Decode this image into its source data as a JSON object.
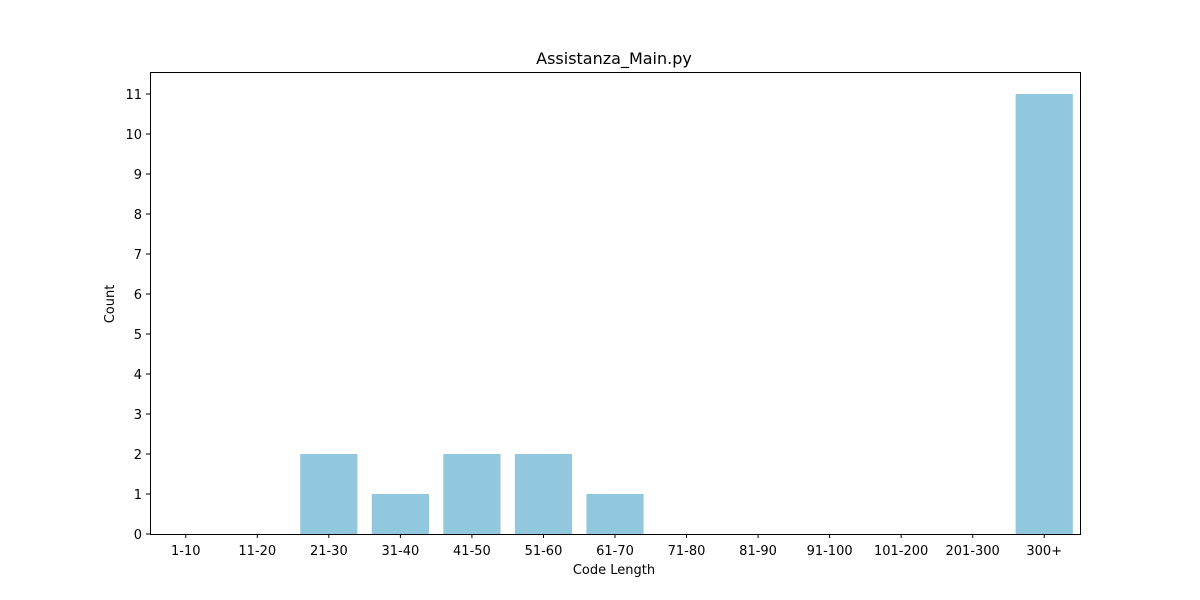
{
  "chart_data": {
    "type": "bar",
    "title": "Assistanza_Main.py",
    "xlabel": "Code Length",
    "ylabel": "Count",
    "categories": [
      "1-10",
      "11-20",
      "21-30",
      "31-40",
      "41-50",
      "51-60",
      "61-70",
      "71-80",
      "81-90",
      "91-100",
      "101-200",
      "201-300",
      "300+"
    ],
    "values": [
      0,
      0,
      2,
      1,
      2,
      2,
      1,
      0,
      0,
      0,
      0,
      0,
      11
    ],
    "ylim": [
      0,
      11.55
    ],
    "yticks": [
      0,
      1,
      2,
      3,
      4,
      5,
      6,
      7,
      8,
      9,
      10,
      11
    ],
    "bar_color": "#92c8dd",
    "grid": false,
    "legend": "none"
  }
}
